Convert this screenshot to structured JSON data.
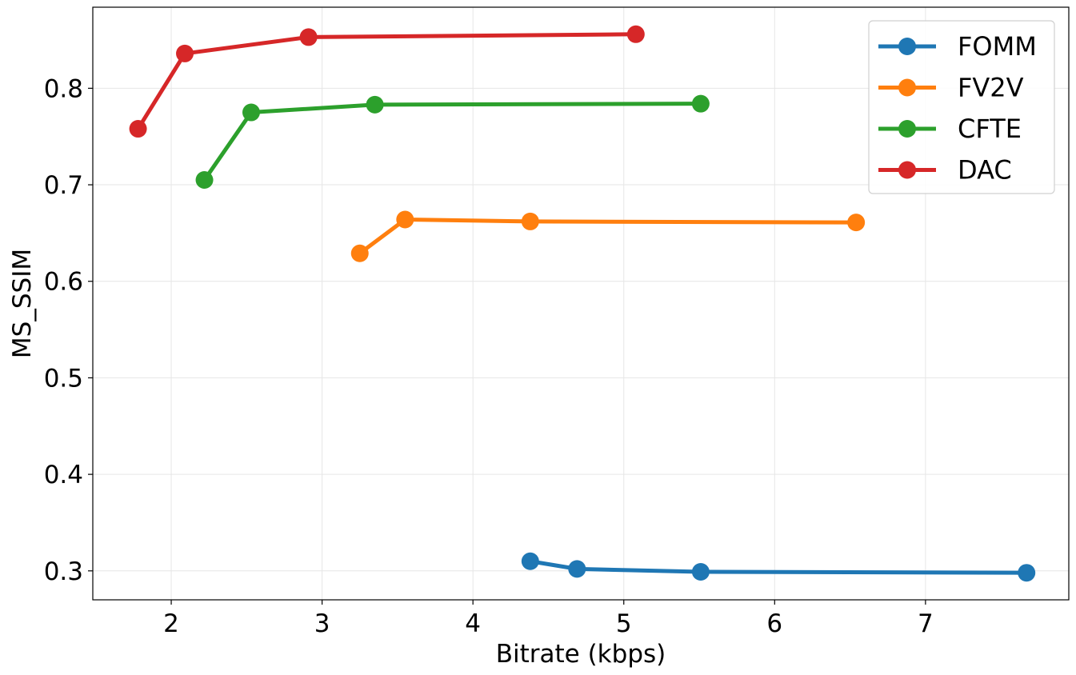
{
  "chart_data": {
    "type": "line",
    "xlabel": "Bitrate (kbps)",
    "ylabel": "MS_SSIM",
    "xlim": [
      1.48,
      7.95
    ],
    "ylim": [
      0.27,
      0.884
    ],
    "xticks": [
      2,
      3,
      4,
      5,
      6,
      7
    ],
    "yticks": [
      0.3,
      0.4,
      0.5,
      0.6,
      0.7,
      0.8
    ],
    "ytick_labels": [
      "0.3",
      "0.4",
      "0.5",
      "0.6",
      "0.7",
      "0.8"
    ],
    "grid": true,
    "legend_position": "top-right",
    "series": [
      {
        "name": "FOMM",
        "color": "#1f77b4",
        "x": [
          4.38,
          4.69,
          5.51,
          7.67
        ],
        "y": [
          0.31,
          0.302,
          0.299,
          0.298
        ]
      },
      {
        "name": "FV2V",
        "color": "#ff7f0e",
        "x": [
          3.25,
          3.55,
          4.38,
          6.54
        ],
        "y": [
          0.629,
          0.664,
          0.662,
          0.661
        ]
      },
      {
        "name": "CFTE",
        "color": "#2ca02c",
        "x": [
          2.22,
          2.53,
          3.35,
          5.51
        ],
        "y": [
          0.705,
          0.775,
          0.783,
          0.784
        ]
      },
      {
        "name": "DAC",
        "color": "#d62728",
        "x": [
          1.78,
          2.09,
          2.91,
          5.08
        ],
        "y": [
          0.758,
          0.836,
          0.853,
          0.856
        ]
      }
    ]
  }
}
